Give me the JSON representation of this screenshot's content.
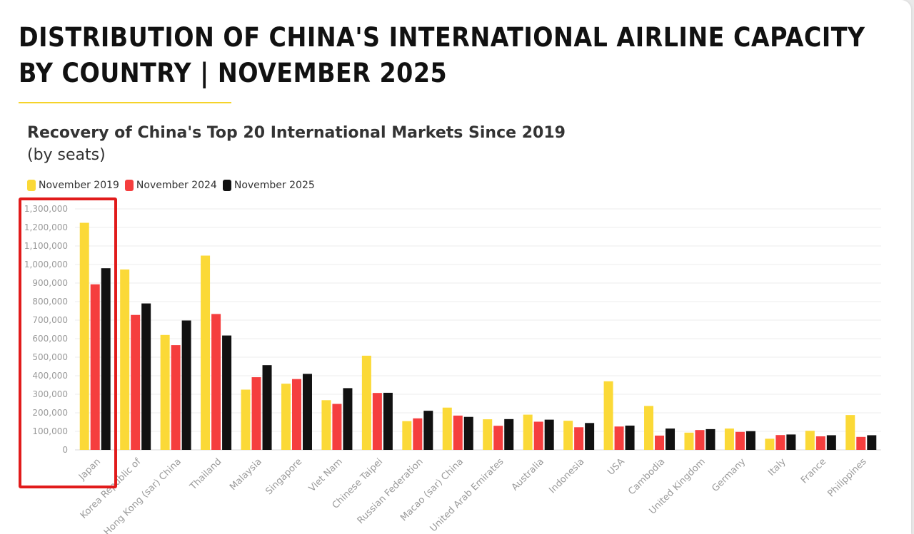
{
  "page": {
    "title": "DISTRIBUTION OF CHINA'S INTERNATIONAL AIRLINE CAPACITY BY COUNTRY | NOVEMBER 2025"
  },
  "colors": {
    "accent_underline": "#f5d32a",
    "highlight_box": "#e11b1b"
  },
  "chart_data": {
    "type": "bar",
    "title": "Recovery of China's Top 20 International Markets Since 2019",
    "subtitle": "(by seats)",
    "xlabel": "",
    "ylabel": "",
    "ylim": [
      0,
      1300000
    ],
    "yticks": [
      0,
      100000,
      200000,
      300000,
      400000,
      500000,
      600000,
      700000,
      800000,
      900000,
      1000000,
      1100000,
      1200000,
      1300000
    ],
    "ytick_labels": [
      "0",
      "100,000",
      "200,000",
      "300,000",
      "400,000",
      "500,000",
      "600,000",
      "700,000",
      "800,000",
      "900,000",
      "1,000,000",
      "1,100,000",
      "1,200,000",
      "1,300,000"
    ],
    "grid": true,
    "legend_position": "top-left",
    "highlighted_category": "Japan",
    "categories": [
      "Japan",
      "Korea Republic of",
      "Hong Kong (sar) China",
      "Thailand",
      "Malaysia",
      "Singapore",
      "Viet Nam",
      "Chinese Taipei",
      "Russian Federation",
      "Macao (sar) China",
      "United Arab Emirates",
      "Australia",
      "Indonesia",
      "USA",
      "Cambodia",
      "United Kingdom",
      "Germany",
      "Italy",
      "France",
      "Philippines"
    ],
    "series": [
      {
        "name": "November 2019",
        "color": "#fbd937",
        "values": [
          1225000,
          973000,
          620000,
          1048000,
          325000,
          357000,
          268000,
          508000,
          155000,
          228000,
          165000,
          190000,
          157000,
          370000,
          237000,
          93000,
          115000,
          60000,
          103000,
          188000
        ]
      },
      {
        "name": "November 2024",
        "color": "#f53e3e",
        "values": [
          893000,
          728000,
          565000,
          733000,
          392000,
          382000,
          248000,
          307000,
          170000,
          185000,
          130000,
          152000,
          122000,
          126000,
          77000,
          107000,
          97000,
          80000,
          73000,
          70000
        ]
      },
      {
        "name": "November 2025",
        "color": "#111111",
        "values": [
          980000,
          790000,
          698000,
          617000,
          457000,
          410000,
          333000,
          308000,
          211000,
          178000,
          166000,
          163000,
          145000,
          131000,
          115000,
          112000,
          101000,
          83000,
          79000,
          79000
        ]
      }
    ]
  }
}
